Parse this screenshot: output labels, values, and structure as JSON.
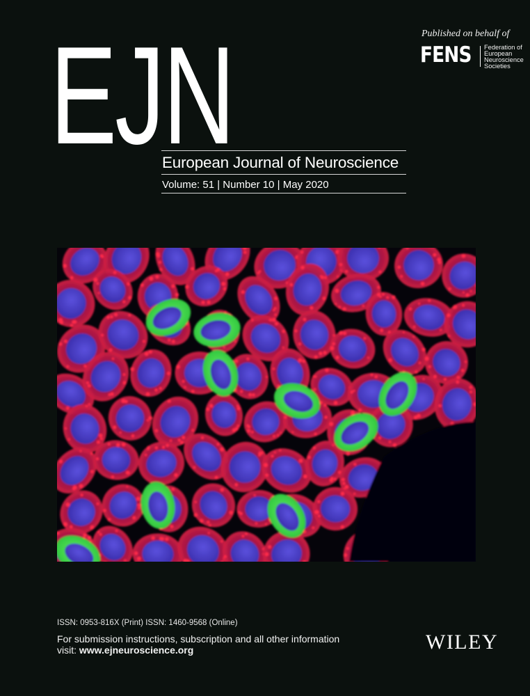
{
  "publisher_note": {
    "published_on_behalf": "Published on behalf of",
    "fens_wordmark": "FENS",
    "fens_full_name": [
      "Federation of",
      "European",
      "Neuroscience",
      "Societies"
    ]
  },
  "masthead": {
    "logo": "EJN",
    "title": "European Journal of Neuroscience",
    "issue_line": "Volume: 51 | Number 10 | May 2020"
  },
  "cover_image": {
    "icon": "fluorescence-micrograph-cells",
    "colors": {
      "background": "#05040a",
      "cytoplasm": "#c01848",
      "nucleus": "#4a3fc8",
      "gfp": "#3fe04a"
    }
  },
  "footer": {
    "issn": "ISSN: 0953-816X (Print) ISSN: 1460-9568 (Online)",
    "info": "For submission instructions, subscription and all other information",
    "visit_prefix": "visit: ",
    "visit_url": "www.ejneuroscience.org",
    "publisher_logo": "WILEY"
  },
  "colors": {
    "page_background": "#0b110e",
    "text": "#ffffff"
  }
}
